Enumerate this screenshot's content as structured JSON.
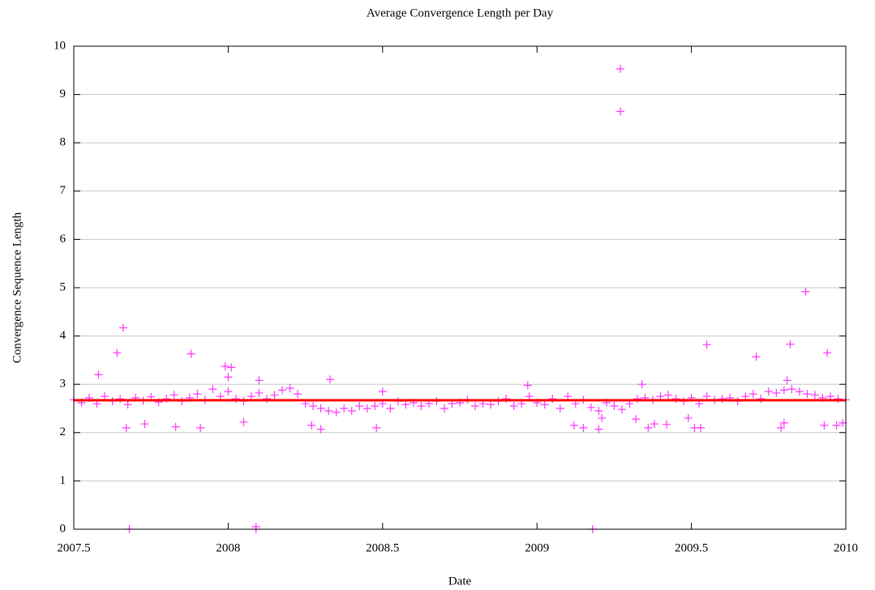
{
  "chart_data": {
    "type": "scatter",
    "title": "Average Convergence Length per Day",
    "x_label": "Date",
    "y_label": "Convergence Sequence Length",
    "xlim": [
      2007.5,
      2010
    ],
    "xticks": [
      2007.5,
      2008,
      2008.5,
      2009,
      2009.5,
      2010
    ],
    "ylim": [
      0,
      10
    ],
    "yticks": [
      0,
      1,
      2,
      3,
      4,
      5,
      6,
      7,
      8,
      9,
      10
    ],
    "grid": true,
    "series": [
      {
        "color": "#ff33ff",
        "marker": "+",
        "x": [
          2007.5,
          2007.525,
          2007.55,
          2007.575,
          2007.6,
          2007.625,
          2007.65,
          2007.675,
          2007.7,
          2007.725,
          2007.75,
          2007.775,
          2007.8,
          2007.825,
          2007.85,
          2007.875,
          2007.9,
          2007.925,
          2007.95,
          2007.975,
          2008,
          2008.025,
          2008.05,
          2008.075,
          2008.1,
          2008.125,
          2008.15,
          2008.175,
          2008.2,
          2008.225,
          2008.25,
          2008.275,
          2008.3,
          2008.325,
          2008.35,
          2008.375,
          2008.4,
          2008.425,
          2008.45,
          2008.475,
          2008.5,
          2008.525,
          2008.55,
          2008.575,
          2008.6,
          2008.625,
          2008.65,
          2008.675,
          2008.7,
          2008.725,
          2008.75,
          2008.775,
          2008.8,
          2008.825,
          2008.85,
          2008.875,
          2008.9,
          2008.925,
          2008.95,
          2008.975,
          2009,
          2009.025,
          2009.05,
          2009.075,
          2009.1,
          2009.125,
          2009.15,
          2009.175,
          2009.2,
          2009.225,
          2009.25,
          2009.275,
          2009.3,
          2009.325,
          2009.35,
          2009.375,
          2009.4,
          2009.425,
          2009.45,
          2009.475,
          2009.5,
          2009.525,
          2009.55,
          2009.575,
          2009.6,
          2009.625,
          2009.65,
          2009.675,
          2009.7,
          2009.725,
          2009.75,
          2009.775,
          2009.8,
          2009.825,
          2009.85,
          2009.875,
          2009.9,
          2009.925,
          2009.95,
          2009.975,
          2010,
          2007.58,
          2007.64,
          2007.66,
          2007.67,
          2007.68,
          2007.73,
          2007.83,
          2007.88,
          2007.91,
          2007.99,
          2008.0,
          2008.01,
          2008.05,
          2008.09,
          2008.09,
          2008.1,
          2008.27,
          2008.3,
          2008.33,
          2008.48,
          2008.5,
          2008.97,
          2009.12,
          2009.15,
          2009.18,
          2009.2,
          2009.21,
          2009.27,
          2009.27,
          2009.32,
          2009.34,
          2009.36,
          2009.38,
          2009.42,
          2009.49,
          2009.51,
          2009.53,
          2009.55,
          2009.71,
          2009.79,
          2009.8,
          2009.81,
          2009.82,
          2009.87,
          2009.93,
          2009.94,
          2009.97,
          2009.99
        ],
        "values": [
          2.68,
          2.62,
          2.72,
          2.6,
          2.75,
          2.65,
          2.7,
          2.58,
          2.72,
          2.66,
          2.74,
          2.63,
          2.7,
          2.78,
          2.65,
          2.72,
          2.8,
          2.68,
          2.9,
          2.75,
          2.85,
          2.7,
          2.65,
          2.75,
          2.82,
          2.7,
          2.78,
          2.88,
          2.92,
          2.8,
          2.6,
          2.55,
          2.5,
          2.45,
          2.42,
          2.5,
          2.45,
          2.55,
          2.5,
          2.55,
          2.6,
          2.5,
          2.65,
          2.58,
          2.62,
          2.55,
          2.6,
          2.65,
          2.5,
          2.6,
          2.62,
          2.68,
          2.55,
          2.6,
          2.58,
          2.65,
          2.7,
          2.55,
          2.6,
          2.75,
          2.62,
          2.58,
          2.7,
          2.5,
          2.75,
          2.6,
          2.68,
          2.52,
          2.45,
          2.62,
          2.55,
          2.48,
          2.6,
          2.7,
          2.72,
          2.68,
          2.75,
          2.78,
          2.7,
          2.65,
          2.72,
          2.6,
          2.75,
          2.68,
          2.7,
          2.72,
          2.65,
          2.75,
          2.8,
          2.7,
          2.85,
          2.82,
          2.88,
          2.9,
          2.85,
          2.8,
          2.78,
          2.72,
          2.75,
          2.7,
          2.68,
          3.2,
          3.65,
          4.17,
          2.1,
          0,
          2.18,
          2.12,
          3.63,
          2.1,
          3.37,
          3.15,
          3.35,
          2.22,
          0,
          0.05,
          3.08,
          2.15,
          2.07,
          3.1,
          2.1,
          2.85,
          2.98,
          2.15,
          2.1,
          0,
          2.07,
          2.3,
          9.53,
          8.65,
          2.28,
          3.0,
          2.1,
          2.18,
          2.17,
          2.3,
          2.1,
          2.1,
          3.82,
          3.57,
          2.1,
          2.2,
          3.08,
          3.83,
          4.92,
          2.15,
          3.65,
          2.15,
          2.2
        ]
      },
      {
        "color": "#ff0000",
        "style": "line",
        "x": [
          2007.5,
          2010
        ],
        "values": [
          2.67,
          2.67
        ]
      }
    ]
  }
}
